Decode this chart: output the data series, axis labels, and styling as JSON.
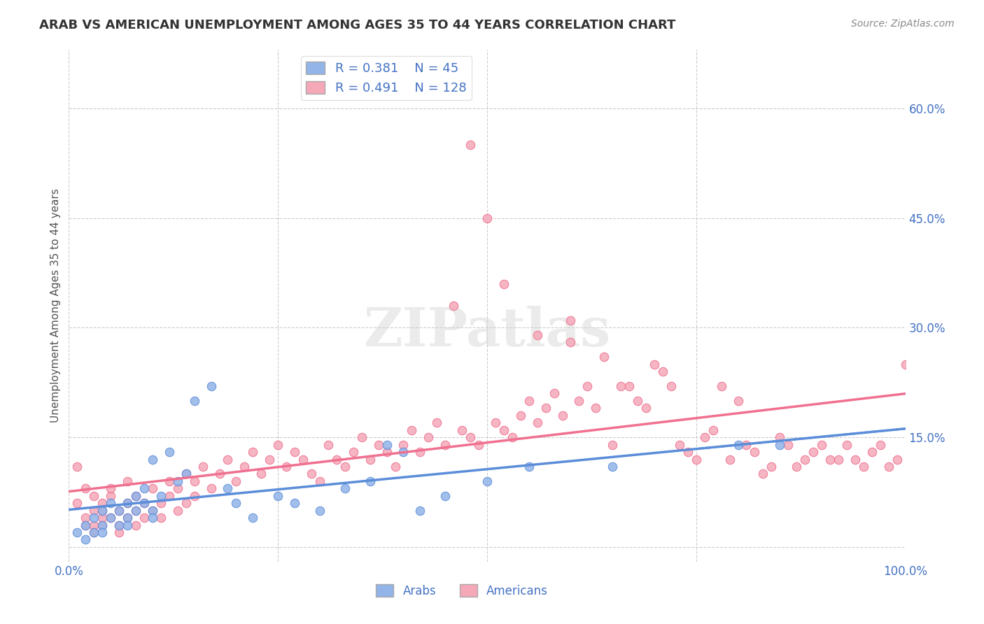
{
  "title": "ARAB VS AMERICAN UNEMPLOYMENT AMONG AGES 35 TO 44 YEARS CORRELATION CHART",
  "source": "Source: ZipAtlas.com",
  "xlabel": "",
  "ylabel": "Unemployment Among Ages 35 to 44 years",
  "xlim": [
    0,
    1.0
  ],
  "ylim": [
    -0.02,
    0.68
  ],
  "xticks": [
    0.0,
    0.25,
    0.5,
    0.75,
    1.0
  ],
  "xticklabels": [
    "0.0%",
    "",
    "",
    "",
    "100.0%"
  ],
  "ytick_right_vals": [
    0.0,
    0.15,
    0.3,
    0.45,
    0.6
  ],
  "ytick_right_labels": [
    "",
    "15.0%",
    "30.0%",
    "45.0%",
    "60.0%"
  ],
  "arab_R": 0.381,
  "arab_N": 45,
  "american_R": 0.491,
  "american_N": 128,
  "arab_color": "#92b4e8",
  "american_color": "#f4a8b8",
  "arab_line_color": "#5b8dd9",
  "american_line_color": "#f07090",
  "legend_text_color": "#4472c4",
  "grid_color": "#cccccc",
  "background_color": "#ffffff",
  "watermark_text": "ZIPatlas",
  "arab_x": [
    0.01,
    0.02,
    0.02,
    0.03,
    0.03,
    0.04,
    0.04,
    0.04,
    0.05,
    0.05,
    0.06,
    0.06,
    0.07,
    0.07,
    0.07,
    0.08,
    0.08,
    0.09,
    0.09,
    0.1,
    0.1,
    0.1,
    0.11,
    0.12,
    0.13,
    0.14,
    0.15,
    0.17,
    0.19,
    0.2,
    0.22,
    0.25,
    0.27,
    0.3,
    0.33,
    0.36,
    0.38,
    0.4,
    0.42,
    0.45,
    0.5,
    0.55,
    0.65,
    0.8,
    0.85
  ],
  "arab_y": [
    0.02,
    0.03,
    0.01,
    0.04,
    0.02,
    0.05,
    0.03,
    0.02,
    0.04,
    0.06,
    0.03,
    0.05,
    0.04,
    0.06,
    0.03,
    0.07,
    0.05,
    0.06,
    0.08,
    0.12,
    0.05,
    0.04,
    0.07,
    0.13,
    0.09,
    0.1,
    0.2,
    0.22,
    0.08,
    0.06,
    0.04,
    0.07,
    0.06,
    0.05,
    0.08,
    0.09,
    0.14,
    0.13,
    0.05,
    0.07,
    0.09,
    0.11,
    0.11,
    0.14,
    0.14
  ],
  "american_x": [
    0.01,
    0.01,
    0.02,
    0.02,
    0.02,
    0.03,
    0.03,
    0.03,
    0.03,
    0.04,
    0.04,
    0.04,
    0.04,
    0.05,
    0.05,
    0.05,
    0.06,
    0.06,
    0.06,
    0.07,
    0.07,
    0.07,
    0.08,
    0.08,
    0.08,
    0.09,
    0.09,
    0.1,
    0.1,
    0.11,
    0.11,
    0.12,
    0.12,
    0.13,
    0.13,
    0.14,
    0.14,
    0.15,
    0.15,
    0.16,
    0.17,
    0.18,
    0.19,
    0.2,
    0.21,
    0.22,
    0.23,
    0.24,
    0.25,
    0.26,
    0.27,
    0.28,
    0.29,
    0.3,
    0.31,
    0.32,
    0.33,
    0.34,
    0.35,
    0.36,
    0.37,
    0.38,
    0.39,
    0.4,
    0.41,
    0.42,
    0.43,
    0.44,
    0.45,
    0.46,
    0.47,
    0.48,
    0.49,
    0.5,
    0.51,
    0.52,
    0.53,
    0.54,
    0.55,
    0.56,
    0.57,
    0.58,
    0.59,
    0.6,
    0.61,
    0.62,
    0.63,
    0.65,
    0.67,
    0.68,
    0.7,
    0.72,
    0.75,
    0.78,
    0.8,
    0.82,
    0.85,
    0.87,
    0.9,
    0.92,
    0.93,
    0.94,
    0.95,
    0.96,
    0.97,
    0.98,
    0.99,
    1.0,
    0.64,
    0.66,
    0.69,
    0.71,
    0.73,
    0.74,
    0.76,
    0.77,
    0.79,
    0.81,
    0.83,
    0.84,
    0.86,
    0.88,
    0.89,
    0.91,
    0.48,
    0.52,
    0.56,
    0.6
  ],
  "american_y": [
    0.11,
    0.06,
    0.08,
    0.04,
    0.03,
    0.05,
    0.03,
    0.07,
    0.02,
    0.04,
    0.06,
    0.03,
    0.05,
    0.07,
    0.04,
    0.08,
    0.03,
    0.05,
    0.02,
    0.04,
    0.06,
    0.09,
    0.05,
    0.07,
    0.03,
    0.04,
    0.06,
    0.05,
    0.08,
    0.06,
    0.04,
    0.07,
    0.09,
    0.05,
    0.08,
    0.06,
    0.1,
    0.07,
    0.09,
    0.11,
    0.08,
    0.1,
    0.12,
    0.09,
    0.11,
    0.13,
    0.1,
    0.12,
    0.14,
    0.11,
    0.13,
    0.12,
    0.1,
    0.09,
    0.14,
    0.12,
    0.11,
    0.13,
    0.15,
    0.12,
    0.14,
    0.13,
    0.11,
    0.14,
    0.16,
    0.13,
    0.15,
    0.17,
    0.14,
    0.33,
    0.16,
    0.15,
    0.14,
    0.45,
    0.17,
    0.16,
    0.15,
    0.18,
    0.2,
    0.17,
    0.19,
    0.21,
    0.18,
    0.31,
    0.2,
    0.22,
    0.19,
    0.14,
    0.22,
    0.2,
    0.25,
    0.22,
    0.12,
    0.22,
    0.2,
    0.13,
    0.15,
    0.11,
    0.14,
    0.12,
    0.14,
    0.12,
    0.11,
    0.13,
    0.14,
    0.11,
    0.12,
    0.25,
    0.26,
    0.22,
    0.19,
    0.24,
    0.14,
    0.13,
    0.15,
    0.16,
    0.12,
    0.14,
    0.1,
    0.11,
    0.14,
    0.12,
    0.13,
    0.12,
    0.55,
    0.36,
    0.29,
    0.28
  ]
}
